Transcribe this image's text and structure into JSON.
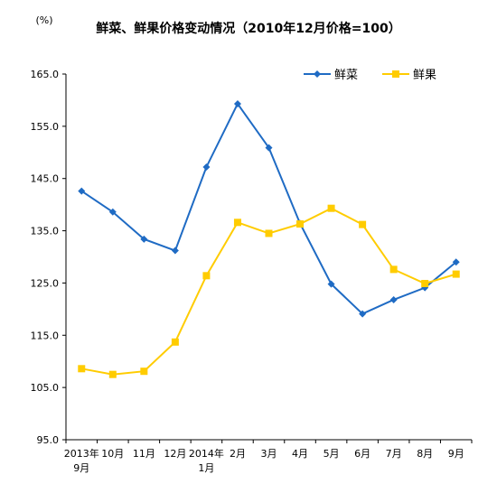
{
  "chart_data": {
    "type": "line",
    "title": "鲜菜、鲜果价格变动情况（2010年12月价格=100）",
    "unit_label": "(%)",
    "categories": [
      "2013年\n9月",
      "10月",
      "11月",
      "12月",
      "2014年\n1月",
      "2月",
      "3月",
      "4月",
      "5月",
      "6月",
      "7月",
      "8月",
      "9月"
    ],
    "ylim": [
      95.0,
      165.0
    ],
    "yticks": [
      "95.0",
      "105.0",
      "115.0",
      "125.0",
      "135.0",
      "145.0",
      "155.0",
      "165.0"
    ],
    "grid": false,
    "legend": "top-right",
    "series": [
      {
        "name": "鲜菜",
        "color": "#1F6BC4",
        "marker": "diamond",
        "values": [
          142.6,
          138.6,
          133.4,
          131.2,
          147.2,
          159.3,
          150.9,
          136.4,
          124.8,
          119.1,
          121.8,
          124.1,
          129.0
        ]
      },
      {
        "name": "鲜果",
        "color": "#FFCC00",
        "marker": "square",
        "values": [
          108.6,
          107.5,
          108.1,
          113.7,
          126.4,
          136.6,
          134.5,
          136.3,
          139.3,
          136.2,
          127.6,
          124.9,
          126.7
        ]
      }
    ]
  }
}
